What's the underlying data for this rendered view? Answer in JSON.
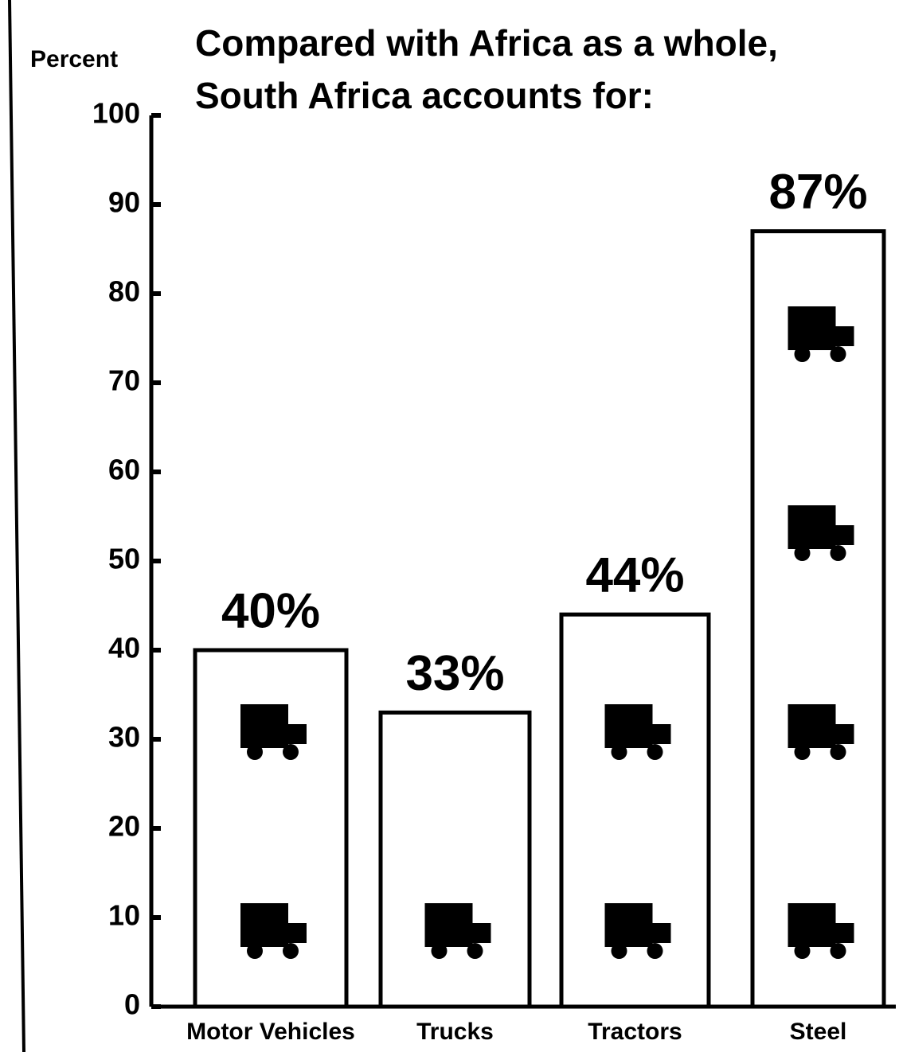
{
  "chart_data": {
    "type": "bar",
    "title": [
      "Compared with Africa as a whole,",
      "South Africa accounts for:"
    ],
    "y_label": "Percent",
    "categories": [
      "Motor Vehicles",
      "Trucks",
      "Tractors",
      "Steel"
    ],
    "values": [
      40,
      33,
      44,
      87
    ],
    "value_labels": [
      "40%",
      "33%",
      "44%",
      "87%"
    ],
    "color": "#000000",
    "ylim": [
      0,
      100
    ],
    "yticks": [
      0,
      10,
      20,
      30,
      40,
      50,
      60,
      70,
      80,
      90,
      100
    ],
    "grid": false
  }
}
